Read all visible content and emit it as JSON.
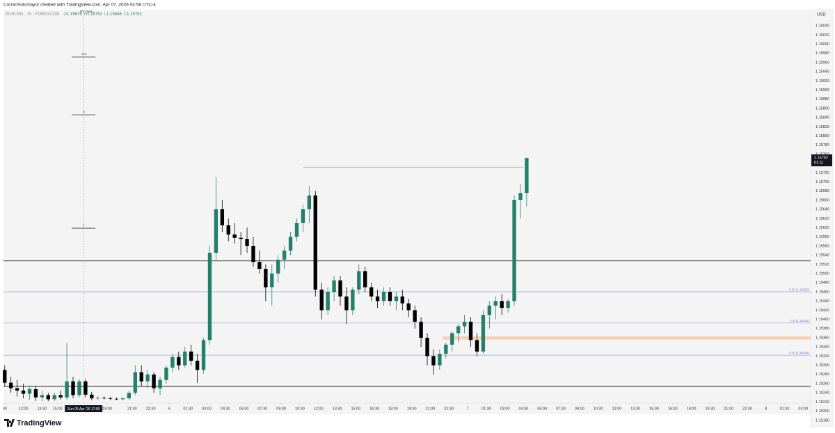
{
  "header": {
    "author_line": "CurranSotomayor created with TradingView.com, Apr 07, 2026 04:58 UTC-4",
    "brand": "TradingView"
  },
  "chart_data": {
    "type": "candlestick",
    "symbol": "EURUSD · 15 · FOREXCOM",
    "legend_keys": [
      "O",
      "H",
      "L",
      "C"
    ],
    "currency": "USD",
    "countdown": "01:11",
    "up_color": "#22806b",
    "down_color": "#000000",
    "open": [
      1.1529,
      1.15262,
      1.1525,
      1.15245,
      1.15238,
      1.15248,
      1.1523,
      1.15235,
      1.15226,
      1.15235,
      1.1523,
      1.15265,
      1.15235,
      1.15265,
      1.15236,
      1.15228,
      1.15229,
      1.15228,
      1.15227,
      1.15226,
      1.15228,
      1.1524,
      1.15285,
      1.15265,
      1.1528,
      1.1525,
      1.15268,
      1.15295,
      1.15318,
      1.153,
      1.1533,
      1.1531,
      1.1529,
      1.15355,
      1.15545,
      1.1564,
      1.15605,
      1.15585,
      1.15578,
      1.15575,
      1.1556,
      1.15525,
      1.1551,
      1.1547,
      1.155,
      1.1553,
      1.1555,
      1.1558,
      1.1561,
      1.1564,
      1.1567,
      1.15465,
      1.1542,
      1.1546,
      1.15485,
      1.1545,
      1.1542,
      1.15465,
      1.15505,
      1.1547,
      1.1545,
      1.1544,
      1.1546,
      1.1544,
      1.1545,
      1.15435,
      1.1542,
      1.15395,
      1.1536,
      1.1532,
      1.153,
      1.15325,
      1.15345,
      1.1537,
      1.15385,
      1.15395,
      1.15355,
      1.1533,
      1.1541,
      1.1543,
      1.1544,
      1.15425,
      1.1544,
      1.1566,
      1.15675
    ],
    "high": [
      1.153,
      1.15275,
      1.15268,
      1.1526,
      1.15252,
      1.15255,
      1.15245,
      1.1524,
      1.1524,
      1.15245,
      1.15349,
      1.15275,
      1.1527,
      1.1527,
      1.15242,
      1.15232,
      1.15232,
      1.15231,
      1.1523,
      1.1523,
      1.15245,
      1.153,
      1.153,
      1.1529,
      1.15285,
      1.15275,
      1.153,
      1.15325,
      1.1533,
      1.1534,
      1.15345,
      1.15325,
      1.1536,
      1.1556,
      1.1571,
      1.1566,
      1.1562,
      1.1561,
      1.1559,
      1.156,
      1.1558,
      1.1555,
      1.1552,
      1.1552,
      1.1554,
      1.1556,
      1.1559,
      1.1562,
      1.1565,
      1.1569,
      1.1568,
      1.1548,
      1.1547,
      1.15495,
      1.15495,
      1.1547,
      1.1547,
      1.1552,
      1.15515,
      1.1548,
      1.15465,
      1.1547,
      1.1547,
      1.1546,
      1.15465,
      1.15445,
      1.1543,
      1.15405,
      1.1537,
      1.15335,
      1.15335,
      1.1535,
      1.15375,
      1.1539,
      1.1541,
      1.15405,
      1.1537,
      1.1542,
      1.1544,
      1.1545,
      1.15455,
      1.15445,
      1.1567,
      1.15695,
      1.15752
    ],
    "low": [
      1.15255,
      1.1524,
      1.15232,
      1.15228,
      1.15225,
      1.15222,
      1.15222,
      1.15222,
      1.15222,
      1.15225,
      1.15225,
      1.15228,
      1.1523,
      1.1523,
      1.15224,
      1.15225,
      1.15226,
      1.15225,
      1.15224,
      1.15224,
      1.15224,
      1.15235,
      1.15255,
      1.1525,
      1.1524,
      1.15235,
      1.1526,
      1.15285,
      1.1529,
      1.15295,
      1.153,
      1.15262,
      1.15282,
      1.15345,
      1.1553,
      1.1559,
      1.1557,
      1.15565,
      1.1554,
      1.15545,
      1.15515,
      1.155,
      1.1544,
      1.1543,
      1.1548,
      1.1551,
      1.1554,
      1.1557,
      1.1559,
      1.1561,
      1.1545,
      1.154,
      1.1541,
      1.1544,
      1.1543,
      1.1539,
      1.1541,
      1.15455,
      1.1546,
      1.1544,
      1.15425,
      1.1543,
      1.1543,
      1.1542,
      1.1542,
      1.15405,
      1.1538,
      1.1534,
      1.153,
      1.1528,
      1.1529,
      1.15315,
      1.1533,
      1.1535,
      1.1537,
      1.1534,
      1.1532,
      1.15325,
      1.1538,
      1.154,
      1.1541,
      1.15415,
      1.1543,
      1.1562,
      1.15646
    ],
    "close": [
      1.15262,
      1.1525,
      1.15245,
      1.15238,
      1.15248,
      1.1523,
      1.15235,
      1.15226,
      1.15235,
      1.1523,
      1.15265,
      1.15235,
      1.15265,
      1.15236,
      1.15228,
      1.15229,
      1.15228,
      1.15227,
      1.15226,
      1.15228,
      1.1524,
      1.15285,
      1.15265,
      1.1528,
      1.1525,
      1.15268,
      1.15295,
      1.15318,
      1.153,
      1.1533,
      1.1531,
      1.1529,
      1.15355,
      1.15545,
      1.1564,
      1.15605,
      1.15585,
      1.15578,
      1.15575,
      1.1556,
      1.15525,
      1.1551,
      1.1547,
      1.155,
      1.1553,
      1.1555,
      1.1558,
      1.1561,
      1.1564,
      1.1567,
      1.15465,
      1.1542,
      1.1546,
      1.15485,
      1.1545,
      1.1542,
      1.15465,
      1.15505,
      1.1547,
      1.1545,
      1.1544,
      1.1546,
      1.1544,
      1.1545,
      1.15435,
      1.1542,
      1.15395,
      1.1536,
      1.1532,
      1.153,
      1.15325,
      1.15345,
      1.1537,
      1.15385,
      1.15395,
      1.15355,
      1.1533,
      1.1541,
      1.1543,
      1.1544,
      1.15425,
      1.1544,
      1.1566,
      1.15675,
      1.15752
    ],
    "xlim": [
      -0.2,
      129.7
    ],
    "ylim": [
      1.1516,
      1.16075
    ],
    "xticks": [
      {
        "value": 0,
        "label": "30"
      },
      {
        "value": 3,
        "label": "12:00"
      },
      {
        "value": 6,
        "label": "13:30"
      },
      {
        "value": 8.5,
        "label": "15:00"
      },
      {
        "value": 16.5,
        "label": "19:00"
      },
      {
        "value": 20.5,
        "label": "21:00"
      },
      {
        "value": 23.5,
        "label": "22:30"
      },
      {
        "value": 26.5,
        "label": "6"
      },
      {
        "value": 29.5,
        "label": "01:30"
      },
      {
        "value": 32.5,
        "label": "03:00"
      },
      {
        "value": 35.5,
        "label": "04:30"
      },
      {
        "value": 38.5,
        "label": "06:00"
      },
      {
        "value": 41.5,
        "label": "07:30"
      },
      {
        "value": 44.5,
        "label": "09:00"
      },
      {
        "value": 47.5,
        "label": "10:30"
      },
      {
        "value": 50.5,
        "label": "12:00"
      },
      {
        "value": 53.5,
        "label": "13:30"
      },
      {
        "value": 56.5,
        "label": "15:00"
      },
      {
        "value": 59.5,
        "label": "16:30"
      },
      {
        "value": 62.5,
        "label": "18:00"
      },
      {
        "value": 65.5,
        "label": "19:30"
      },
      {
        "value": 68.5,
        "label": "21:00"
      },
      {
        "value": 71.5,
        "label": "22:30"
      },
      {
        "value": 74.5,
        "label": "7"
      },
      {
        "value": 77.5,
        "label": "01:30"
      },
      {
        "value": 80.5,
        "label": "03:00"
      },
      {
        "value": 83.5,
        "label": "04:30"
      },
      {
        "value": 86.5,
        "label": "06:00"
      },
      {
        "value": 89.5,
        "label": "07:30"
      },
      {
        "value": 92.5,
        "label": "09:00"
      },
      {
        "value": 95.5,
        "label": "10:30"
      },
      {
        "value": 98.5,
        "label": "12:00"
      },
      {
        "value": 101.5,
        "label": "13:30"
      },
      {
        "value": 104.5,
        "label": "15:00"
      },
      {
        "value": 107.5,
        "label": "16:30"
      },
      {
        "value": 110.5,
        "label": "18:00"
      },
      {
        "value": 113.5,
        "label": "19:30"
      },
      {
        "value": 116.5,
        "label": "21:00"
      },
      {
        "value": 119.5,
        "label": "22:30"
      },
      {
        "value": 122.5,
        "label": "8"
      },
      {
        "value": 125.5,
        "label": "01:30"
      },
      {
        "value": 128.5,
        "label": "03:00"
      }
    ],
    "yticks": [
      {
        "value": 1.1518,
        "label": "1.15180"
      },
      {
        "value": 1.152,
        "label": "1.15200"
      },
      {
        "value": 1.1522,
        "label": "1.15220"
      },
      {
        "value": 1.1524,
        "label": "1.15240"
      },
      {
        "value": 1.1526,
        "label": "1.15260"
      },
      {
        "value": 1.1528,
        "label": "1.15280"
      },
      {
        "value": 1.153,
        "label": "1.15300"
      },
      {
        "value": 1.1532,
        "label": "1.15320"
      },
      {
        "value": 1.1534,
        "label": "1.15340"
      },
      {
        "value": 1.1536,
        "label": "1.15360"
      },
      {
        "value": 1.1538,
        "label": "1.15380"
      },
      {
        "value": 1.154,
        "label": "1.15400"
      },
      {
        "value": 1.1542,
        "label": "1.15420"
      },
      {
        "value": 1.1544,
        "label": "1.15440"
      },
      {
        "value": 1.1546,
        "label": "1.15460"
      },
      {
        "value": 1.1548,
        "label": "1.15480"
      },
      {
        "value": 1.155,
        "label": "1.15500"
      },
      {
        "value": 1.1552,
        "label": "1.15520"
      },
      {
        "value": 1.1554,
        "label": "1.15540"
      },
      {
        "value": 1.1556,
        "label": "1.15560"
      },
      {
        "value": 1.1558,
        "label": "1.15580"
      },
      {
        "value": 1.156,
        "label": "1.15600"
      },
      {
        "value": 1.1562,
        "label": "1.15620"
      },
      {
        "value": 1.1564,
        "label": "1.15640"
      },
      {
        "value": 1.1566,
        "label": "1.15660"
      },
      {
        "value": 1.1568,
        "label": "1.15680"
      },
      {
        "value": 1.157,
        "label": "1.15700"
      },
      {
        "value": 1.1572,
        "label": "1.15720"
      },
      {
        "value": 1.1574,
        "label": "1.15740"
      },
      {
        "value": 1.1576,
        "label": "1.15760"
      },
      {
        "value": 1.1578,
        "label": "1.15780"
      },
      {
        "value": 1.158,
        "label": "1.15800"
      },
      {
        "value": 1.1582,
        "label": "1.15820"
      },
      {
        "value": 1.1584,
        "label": "1.15840"
      },
      {
        "value": 1.1586,
        "label": "1.15860"
      },
      {
        "value": 1.1588,
        "label": "1.15880"
      },
      {
        "value": 1.159,
        "label": "1.15900"
      },
      {
        "value": 1.1592,
        "label": "1.15920"
      },
      {
        "value": 1.1594,
        "label": "1.15940"
      },
      {
        "value": 1.1596,
        "label": "1.15960"
      },
      {
        "value": 1.1598,
        "label": "1.15980"
      },
      {
        "value": 1.16,
        "label": "1.16000"
      },
      {
        "value": 1.1602,
        "label": "1.16020"
      },
      {
        "value": 1.1604,
        "label": "1.16040"
      }
    ],
    "grid": false,
    "levels": [
      {
        "value": 1.15528,
        "color": "#000000"
      },
      {
        "value": 1.15254,
        "color": "#000000"
      }
    ],
    "fib_lines": [
      {
        "value": 1.1546,
        "label": "0.25 (1.15460)",
        "color": "#6f7fd8"
      },
      {
        "value": 1.15392,
        "label": "0.5 (1.15392)",
        "color": "#6f7fd8"
      },
      {
        "value": 1.15322,
        "label": "0.75 (1.15322)",
        "color": "#6f7fd8"
      }
    ],
    "ray": {
      "x": [
        48,
        83.5
      ],
      "value": 1.15732,
      "color": "#9e9e9e"
    },
    "zone": {
      "x0": 70.5,
      "top": 1.15363,
      "bottom": 1.15356,
      "color": "#f8cfb3"
    },
    "crosshair": {
      "value": 12.7,
      "label": "Sun 05 Apr '26  17:00"
    },
    "session_label": "NY Open",
    "markers": [
      {
        "label": "-0.5",
        "value": 1.15972
      },
      {
        "label": "0",
        "value": 1.15846
      },
      {
        "label": "1",
        "value": 1.15599
      }
    ]
  }
}
